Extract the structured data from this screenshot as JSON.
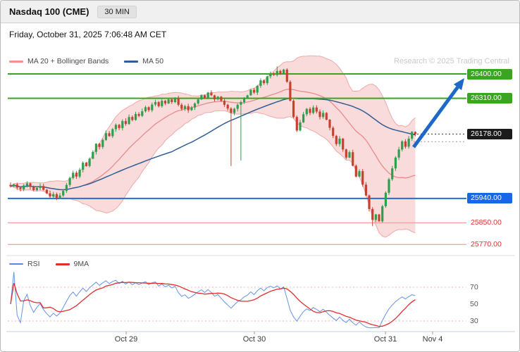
{
  "header": {
    "title": "Nasdaq 100 (CME)",
    "interval": "30 MIN",
    "timestamp": "Friday, October 31, 2025 7:06:48 AM CET",
    "research_credit": "Research © 2025 Trading Central"
  },
  "legend": {
    "ma20_label": "MA 20 + Bollinger Bands",
    "ma50_label": "MA 50",
    "rsi_label": "RSI",
    "rsi_ma_label": "9MA"
  },
  "colors": {
    "level_green": "#3aa520",
    "level_blue": "#1a6ee0",
    "level_red_line": "#f2a6a6",
    "level_red_text": "#e03030",
    "candle_up": "#2e9e4f",
    "candle_down": "#c8402e",
    "band_fill": "#f6b8b8",
    "ma20": "#e98a8a",
    "ma50": "#2e5f96",
    "rsi": "#6593e6",
    "rsi_ma": "#e02e2e",
    "arrow": "#1e68c8"
  },
  "chart_data": {
    "type": "candlestick",
    "title": "Nasdaq 100 (CME)",
    "interval": "30 MIN",
    "indicators": {
      "ma_fast": 20,
      "ma_slow": 50,
      "bollinger_k": 2,
      "rsi_period": 14,
      "rsi_ma": 9
    },
    "closes": [
      25985,
      25992,
      25980,
      25974,
      25988,
      25996,
      25983,
      25971,
      25979,
      25986,
      25972,
      25959,
      25947,
      25956,
      25943,
      25951,
      25968,
      25990,
      26016,
      26035,
      26021,
      26046,
      26072,
      26060,
      26087,
      26112,
      26142,
      26130,
      26156,
      26181,
      26170,
      26196,
      26212,
      26200,
      26226,
      26215,
      26241,
      26230,
      26252,
      26245,
      26262,
      26277,
      26266,
      26287,
      26296,
      26281,
      26301,
      26291,
      26306,
      26296,
      26311,
      26286,
      26271,
      26281,
      26266,
      26276,
      26291,
      26306,
      26321,
      26311,
      26331,
      26321,
      26306,
      26316,
      26301,
      26286,
      26272,
      26256,
      26271,
      26286,
      26296,
      26311,
      26321,
      26341,
      26331,
      26356,
      26376,
      26366,
      26391,
      26401,
      26396,
      26411,
      26401,
      26416,
      26371,
      26301,
      26241,
      26191,
      26221,
      26251,
      26271,
      26256,
      26276,
      26261,
      26241,
      26256,
      26231,
      26201,
      26171,
      26141,
      26161,
      26121,
      26091,
      26111,
      26061,
      26021,
      26041,
      25991,
      25951,
      25901,
      25861,
      25881,
      25856,
      25911,
      25961,
      26011,
      26051,
      26091,
      26121,
      26151,
      26131,
      26161,
      26186,
      26178
    ],
    "wick_overrides": {
      "67": {
        "low": 26060
      },
      "70": {
        "low": 26080
      },
      "81": {
        "high": 26428
      },
      "110": {
        "low": 25838
      }
    },
    "levels": [
      {
        "price": 26400,
        "label": "26400.00",
        "style": "green"
      },
      {
        "price": 26310,
        "label": "26310.00",
        "style": "green"
      },
      {
        "price": 26178,
        "label": "26178.00",
        "style": "black"
      },
      {
        "price": 26150,
        "label": "",
        "style": "dotted"
      },
      {
        "price": 25940,
        "label": "25940.00",
        "style": "blue"
      },
      {
        "price": 25850,
        "label": "25850.00",
        "style": "red"
      },
      {
        "price": 25770,
        "label": "25770.00",
        "style": "red"
      }
    ],
    "x_ticks": [
      {
        "label": "Oct 29",
        "x": 178
      },
      {
        "label": "Oct 30",
        "x": 360
      },
      {
        "label": "Oct 31",
        "x": 546
      },
      {
        "label": "Nov 4",
        "x": 613
      }
    ],
    "rsi_axis": [
      {
        "label": "70",
        "value": 70
      },
      {
        "label": "50",
        "value": 50
      },
      {
        "label": "30",
        "value": 30
      }
    ],
    "rsi_guides": [
      70,
      30
    ],
    "annotation": {
      "trend_arrow": "up",
      "target_price": 26400
    }
  }
}
